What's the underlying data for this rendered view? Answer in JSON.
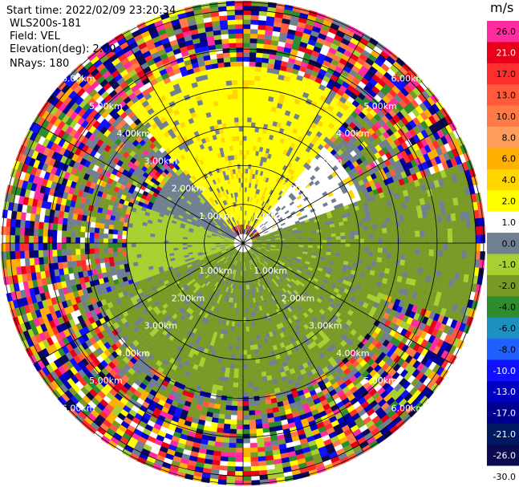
{
  "header": {
    "start_time": "Start time: 2022/02/09 23:20:34",
    "site": "WLS200s-181",
    "field": "Field: VEL",
    "elevation": "Elevation(deg): 2.00",
    "nrays": "NRays: 180"
  },
  "chart_data": {
    "type": "heatmap",
    "projection": "polar-ppi",
    "title": "",
    "range_ring_labels": [
      "1.00km",
      "2.00km",
      "3.00km",
      "4.00km",
      "5.00km",
      "6.00km"
    ],
    "range_rings_km": [
      1,
      2,
      3,
      4,
      5,
      6
    ],
    "max_range_km": 6.2,
    "n_rays": 180,
    "spokes_deg": [
      0,
      30,
      60,
      90,
      120,
      150,
      180,
      210,
      240,
      270,
      300,
      330
    ],
    "colorbar": {
      "unit": "m/s",
      "ticks": [
        "26.0",
        "21.0",
        "17.0",
        "13.0",
        "10.0",
        "8.0",
        "6.0",
        "4.0",
        "2.0",
        "1.0",
        "0.0",
        "-1.0",
        "-2.0",
        "-4.0",
        "-6.0",
        "-8.0",
        "-10.0",
        "-13.0",
        "-17.0",
        "-21.0",
        "-26.0",
        "-30.0"
      ],
      "colors": [
        "#ff2ca0",
        "#e8001a",
        "#ff2e2e",
        "#ff5a3c",
        "#ff7a46",
        "#ff9e5a",
        "#ffb000",
        "#ffd600",
        "#ffff00",
        "#ffffff",
        "#708090",
        "#a8d030",
        "#7a9a28",
        "#2e8b2e",
        "#1e90c0",
        "#2060ff",
        "#1010ff",
        "#0000c0",
        "#000090",
        "#001860",
        "#0a0a50",
        "#ffffff"
      ]
    },
    "sectors": [
      {
        "az_from": 320,
        "az_to": 40,
        "r_from": 0.5,
        "r_to": 4.6,
        "value": 2.0
      },
      {
        "az_from": 40,
        "az_to": 70,
        "r_from": 0.5,
        "r_to": 3.2,
        "value": 1.0
      },
      {
        "az_from": 70,
        "az_to": 110,
        "r_from": 0.3,
        "r_to": 6.0,
        "value": -2.0
      },
      {
        "az_from": 110,
        "az_to": 250,
        "r_from": 0.3,
        "r_to": 4.0,
        "value": -2.0
      },
      {
        "az_from": 250,
        "az_to": 290,
        "r_from": 0.3,
        "r_to": 3.0,
        "value": -1.0
      },
      {
        "az_from": 290,
        "az_to": 320,
        "r_from": 0.3,
        "r_to": 2.5,
        "value": 0.0
      }
    ]
  }
}
